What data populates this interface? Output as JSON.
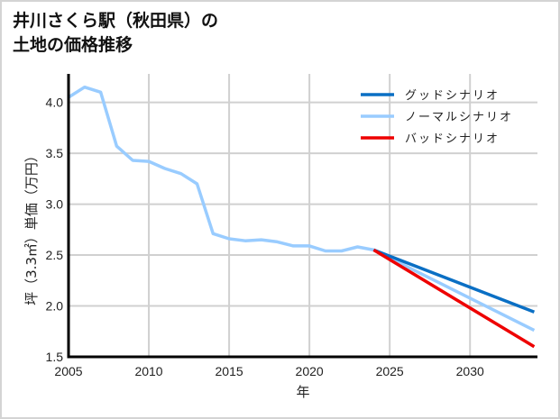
{
  "title": "井川さくら駅（秋田県）の\n土地の価格推移",
  "chart_data": {
    "type": "line",
    "title": "井川さくら駅（秋田県）の土地の価格推移",
    "xlabel": "年",
    "ylabel": "坪（3.3㎡）単価（万円）",
    "xlim": [
      2005,
      2034.2
    ],
    "ylim": [
      1.5,
      4.28
    ],
    "xticks": [
      2005,
      2010,
      2015,
      2020,
      2025,
      2030
    ],
    "yticks": [
      1.5,
      2.0,
      2.5,
      3.0,
      3.5,
      4.0
    ],
    "ytick_labels": [
      "1.5",
      "2.0",
      "2.5",
      "3.0",
      "3.5",
      "4.0"
    ],
    "grid": true,
    "legend_position": "upper right",
    "series": [
      {
        "name": "グッドシナリオ",
        "color": "#0a6fc4",
        "x": [
          2024,
          2034
        ],
        "y": [
          2.55,
          1.94
        ]
      },
      {
        "name": "ノーマルシナリオ",
        "color": "#99ccff",
        "x": [
          2005,
          2006,
          2007,
          2008,
          2009,
          2010,
          2011,
          2012,
          2013,
          2014,
          2015,
          2016,
          2017,
          2018,
          2019,
          2020,
          2021,
          2022,
          2023,
          2024,
          2034
        ],
        "y": [
          4.05,
          4.15,
          4.1,
          3.57,
          3.43,
          3.42,
          3.35,
          3.3,
          3.2,
          2.71,
          2.66,
          2.64,
          2.65,
          2.63,
          2.59,
          2.59,
          2.54,
          2.54,
          2.58,
          2.55,
          1.76
        ]
      },
      {
        "name": "バッドシナリオ",
        "color": "#ee0000",
        "x": [
          2024,
          2034
        ],
        "y": [
          2.55,
          1.6
        ]
      }
    ]
  },
  "legend": {
    "items": [
      {
        "label": "グッドシナリオ",
        "color": "#0a6fc4"
      },
      {
        "label": "ノーマルシナリオ",
        "color": "#99ccff"
      },
      {
        "label": "バッドシナリオ",
        "color": "#ee0000"
      }
    ]
  },
  "axes": {
    "xlabel": "年",
    "ylabel": "坪（3.3㎡）単価（万円）"
  }
}
